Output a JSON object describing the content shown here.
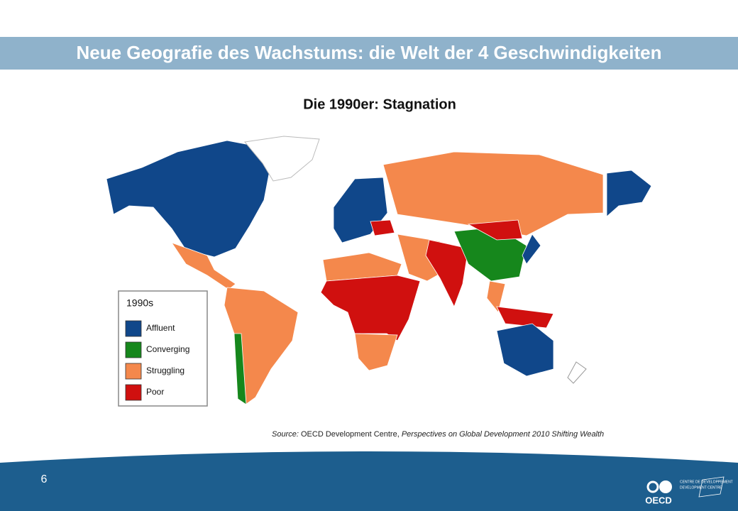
{
  "title": "Neue Geografie des Wachstums: die Welt der 4 Geschwindigkeiten",
  "subtitle": "Die 1990er: Stagnation",
  "legend": {
    "title": "1990s",
    "items": [
      {
        "label": "Affluent",
        "color": "#10478a"
      },
      {
        "label": "Converging",
        "color": "#16871c"
      },
      {
        "label": "Struggling",
        "color": "#f4884c"
      },
      {
        "label": "Poor",
        "color": "#d0100f"
      }
    ]
  },
  "source": {
    "lead": "Source:",
    "org": "OECD Development Centre,",
    "publication": "Perspectives on Global Development 2010 Shifting Wealth"
  },
  "page_number": "6",
  "logo": {
    "name": "OECD",
    "line_fr": "CENTRE DE DEVELOPPEMENT",
    "line_en": "DEVELOPMENT CENTRE"
  }
}
